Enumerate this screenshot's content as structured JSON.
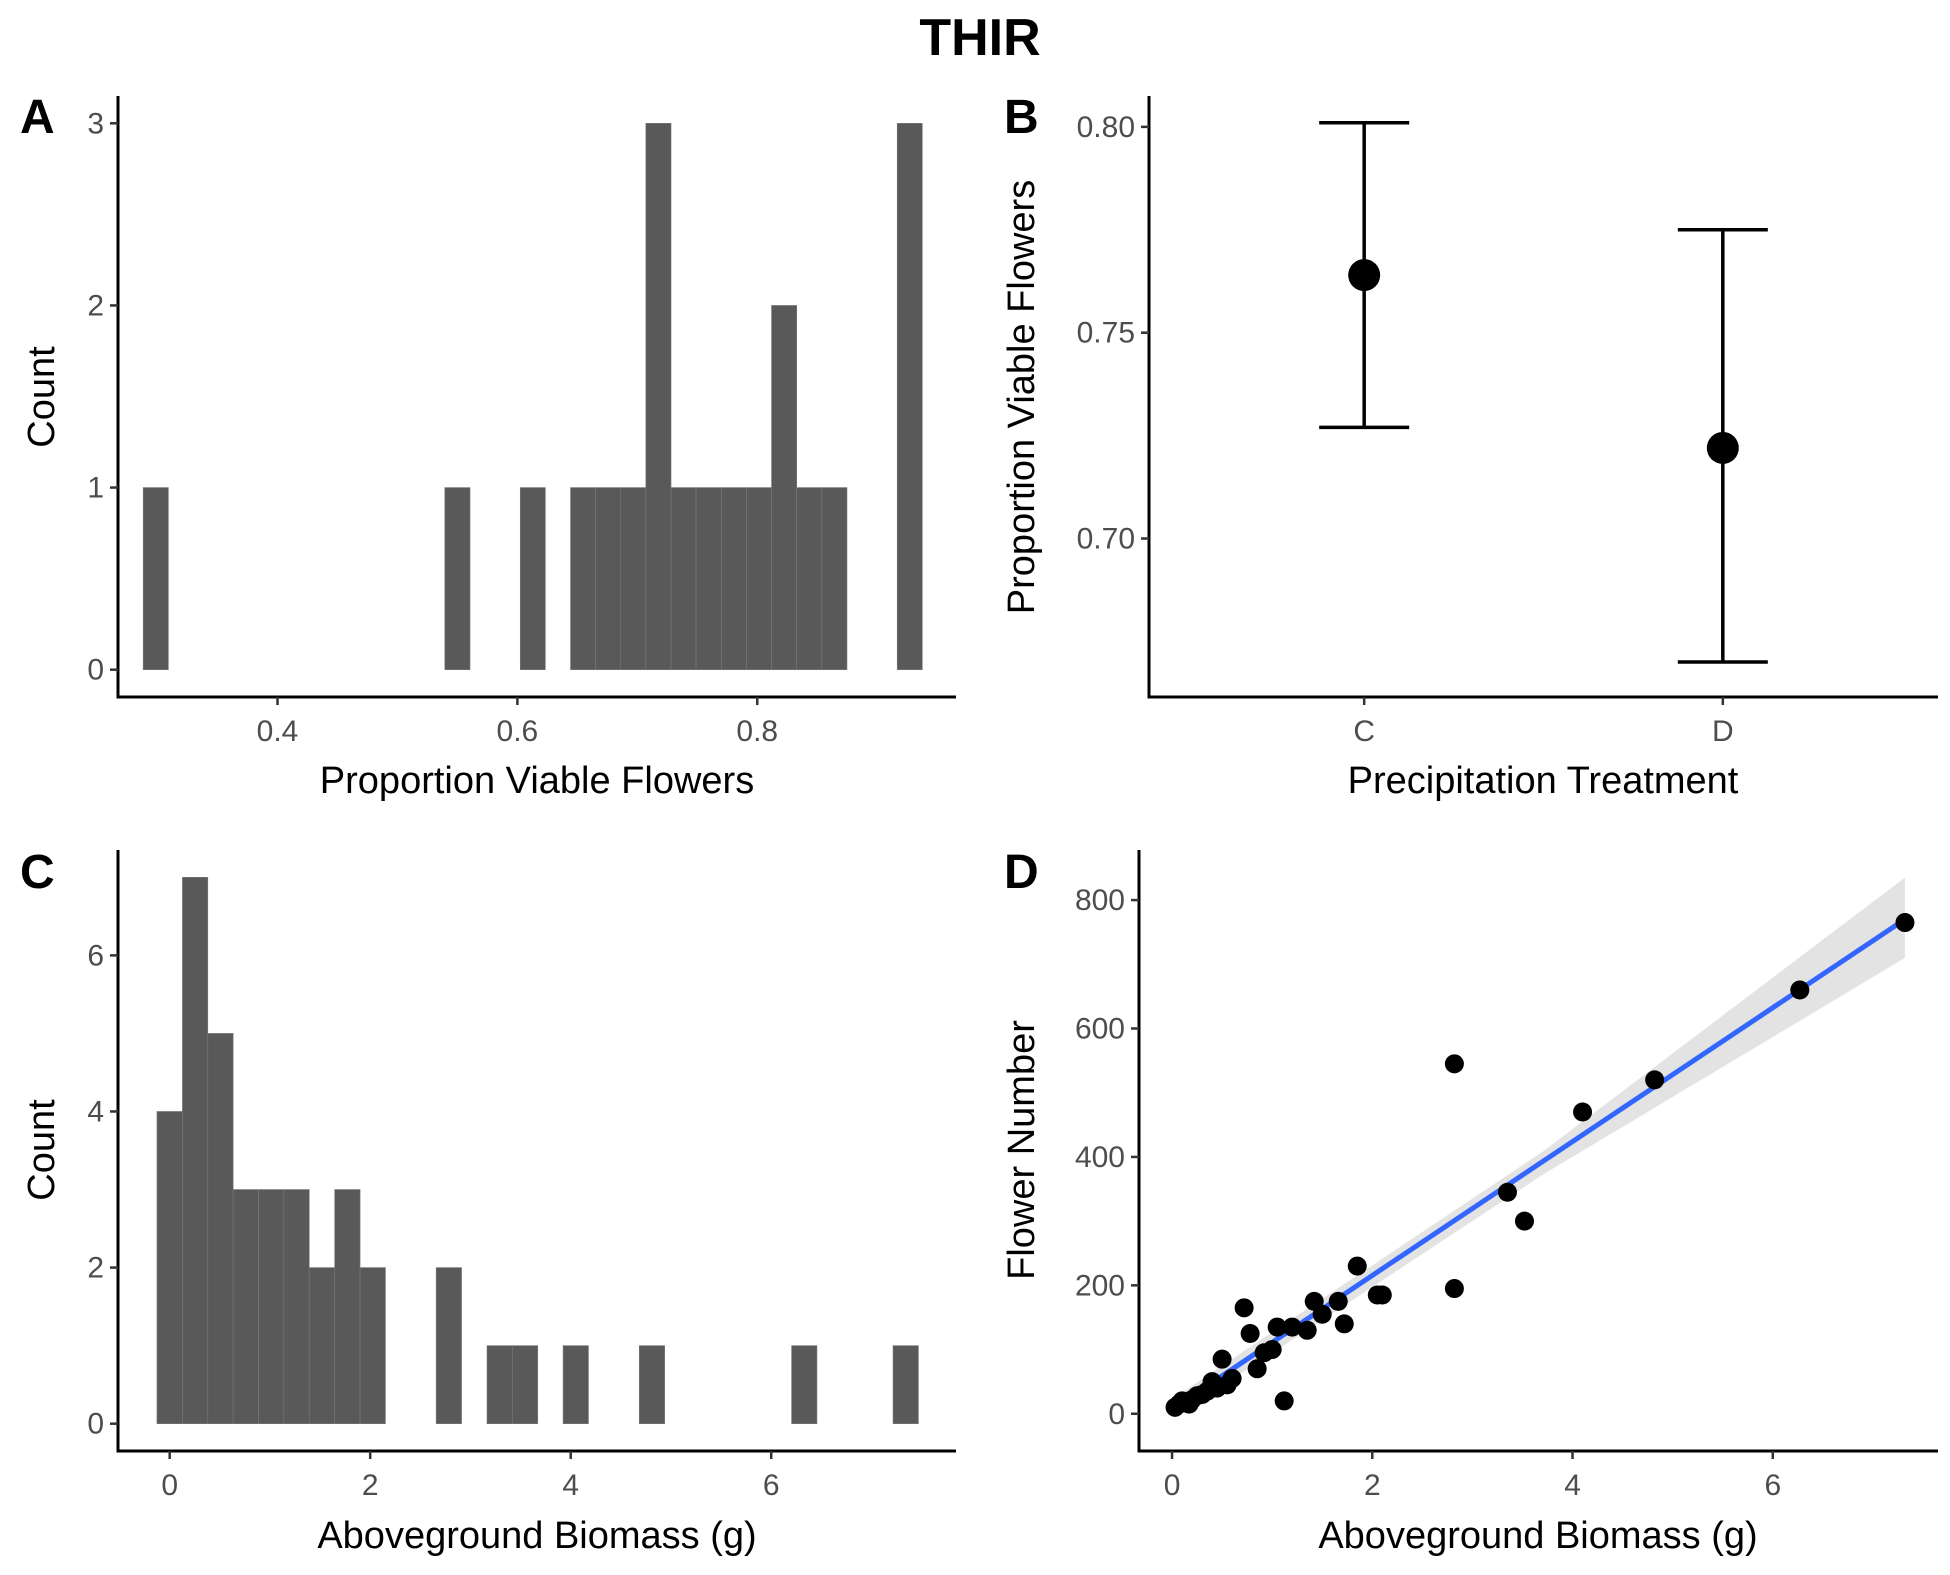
{
  "figure": {
    "title": "THIR"
  },
  "chart_data": [
    {
      "panel": "A",
      "type": "bar",
      "subtype": "histogram",
      "xlabel": "Proportion Viable Flowers",
      "ylabel": "Count",
      "xlim": [
        0.267,
        0.9657
      ],
      "ylim": [
        -0.15,
        3.15
      ],
      "x_ticks": [
        0.4,
        0.6,
        0.8
      ],
      "x_tick_labels": [
        "0.4",
        "0.6",
        "0.8"
      ],
      "y_ticks": [
        0,
        1,
        2,
        3
      ],
      "y_tick_labels": [
        "0",
        "1",
        "2",
        "3"
      ],
      "bar_color": "#595959",
      "bins": [
        {
          "x0": 0.288,
          "x1": 0.309,
          "count": 1
        },
        {
          "x0": 0.5395,
          "x1": 0.5605,
          "count": 1
        },
        {
          "x0": 0.6024,
          "x1": 0.6233,
          "count": 1
        },
        {
          "x0": 0.6443,
          "x1": 0.6652,
          "count": 1
        },
        {
          "x0": 0.6652,
          "x1": 0.6862,
          "count": 1
        },
        {
          "x0": 0.6862,
          "x1": 0.7071,
          "count": 1
        },
        {
          "x0": 0.7071,
          "x1": 0.7281,
          "count": 3
        },
        {
          "x0": 0.7281,
          "x1": 0.749,
          "count": 1
        },
        {
          "x0": 0.749,
          "x1": 0.77,
          "count": 1
        },
        {
          "x0": 0.77,
          "x1": 0.791,
          "count": 1
        },
        {
          "x0": 0.791,
          "x1": 0.8119,
          "count": 1
        },
        {
          "x0": 0.8119,
          "x1": 0.8329,
          "count": 2
        },
        {
          "x0": 0.8329,
          "x1": 0.8538,
          "count": 1
        },
        {
          "x0": 0.8538,
          "x1": 0.8748,
          "count": 1
        },
        {
          "x0": 0.9167,
          "x1": 0.9376,
          "count": 3
        }
      ]
    },
    {
      "panel": "B",
      "type": "scatter",
      "subtype": "point-errorbar",
      "xlabel": "Precipitation Treatment",
      "ylabel": "Proportion Viable Flowers",
      "categories": [
        "C",
        "D"
      ],
      "ylim": [
        0.6615,
        0.8075
      ],
      "y_ticks": [
        0.7,
        0.75,
        0.8
      ],
      "y_tick_labels": [
        "0.70",
        "0.75",
        "0.80"
      ],
      "points": [
        {
          "category": "C",
          "mean": 0.764,
          "lower": 0.727,
          "upper": 0.801
        },
        {
          "category": "D",
          "mean": 0.722,
          "lower": 0.67,
          "upper": 0.775
        }
      ]
    },
    {
      "panel": "C",
      "type": "bar",
      "subtype": "histogram",
      "xlabel": "Aboveground Biomass (g)",
      "ylabel": "Count",
      "xlim": [
        -0.5156,
        7.843
      ],
      "ylim": [
        -0.35,
        7.35
      ],
      "x_ticks": [
        0,
        2,
        4,
        6
      ],
      "x_tick_labels": [
        "0",
        "2",
        "4",
        "6"
      ],
      "y_ticks": [
        0,
        2,
        4,
        6
      ],
      "y_tick_labels": [
        "0",
        "2",
        "4",
        "6"
      ],
      "bar_color": "#595959",
      "bins": [
        {
          "x0": -0.127,
          "x1": 0.127,
          "count": 4
        },
        {
          "x0": 0.127,
          "x1": 0.38,
          "count": 7
        },
        {
          "x0": 0.38,
          "x1": 0.633,
          "count": 5
        },
        {
          "x0": 0.633,
          "x1": 0.886,
          "count": 3
        },
        {
          "x0": 0.886,
          "x1": 1.139,
          "count": 3
        },
        {
          "x0": 1.139,
          "x1": 1.392,
          "count": 3
        },
        {
          "x0": 1.392,
          "x1": 1.646,
          "count": 2
        },
        {
          "x0": 1.646,
          "x1": 1.899,
          "count": 3
        },
        {
          "x0": 1.899,
          "x1": 2.152,
          "count": 2
        },
        {
          "x0": 2.658,
          "x1": 2.911,
          "count": 2
        },
        {
          "x0": 3.165,
          "x1": 3.418,
          "count": 1
        },
        {
          "x0": 3.418,
          "x1": 3.671,
          "count": 1
        },
        {
          "x0": 3.924,
          "x1": 4.177,
          "count": 1
        },
        {
          "x0": 4.684,
          "x1": 4.937,
          "count": 1
        },
        {
          "x0": 6.203,
          "x1": 6.456,
          "count": 1
        },
        {
          "x0": 7.215,
          "x1": 7.468,
          "count": 1
        }
      ]
    },
    {
      "panel": "D",
      "type": "scatter",
      "subtype": "scatter-with-linear-fit",
      "xlabel": "Aboveground Biomass (g)",
      "ylabel": "Flower Number",
      "xlim": [
        -0.33,
        7.65
      ],
      "ylim": [
        -58,
        878
      ],
      "x_ticks": [
        0,
        2,
        4,
        6
      ],
      "x_tick_labels": [
        "0",
        "2",
        "4",
        "6"
      ],
      "y_ticks": [
        0,
        200,
        400,
        600,
        800
      ],
      "y_tick_labels": [
        "0",
        "200",
        "400",
        "600",
        "800"
      ],
      "line_color": "#3366ff",
      "ribbon_color": "#d9d9d9",
      "fit": {
        "x_start": 0.03,
        "y_start": 10,
        "x_end": 7.32,
        "y_end": 770
      },
      "ribbon": [
        {
          "x": 0.03,
          "lower": -5,
          "upper": 26
        },
        {
          "x": 3.7,
          "lower": 372,
          "upper": 408
        },
        {
          "x": 7.32,
          "lower": 710,
          "upper": 835
        }
      ],
      "points": [
        {
          "x": 0.03,
          "y": 10
        },
        {
          "x": 0.07,
          "y": 15
        },
        {
          "x": 0.1,
          "y": 20
        },
        {
          "x": 0.14,
          "y": 18
        },
        {
          "x": 0.17,
          "y": 15
        },
        {
          "x": 0.2,
          "y": 22
        },
        {
          "x": 0.25,
          "y": 28
        },
        {
          "x": 0.3,
          "y": 30
        },
        {
          "x": 0.35,
          "y": 35
        },
        {
          "x": 0.4,
          "y": 50
        },
        {
          "x": 0.45,
          "y": 40
        },
        {
          "x": 0.5,
          "y": 85
        },
        {
          "x": 0.55,
          "y": 45
        },
        {
          "x": 0.6,
          "y": 55
        },
        {
          "x": 0.72,
          "y": 165
        },
        {
          "x": 0.78,
          "y": 125
        },
        {
          "x": 0.85,
          "y": 70
        },
        {
          "x": 0.92,
          "y": 95
        },
        {
          "x": 1.0,
          "y": 100
        },
        {
          "x": 1.05,
          "y": 135
        },
        {
          "x": 1.12,
          "y": 20
        },
        {
          "x": 1.2,
          "y": 135
        },
        {
          "x": 1.35,
          "y": 130
        },
        {
          "x": 1.42,
          "y": 175
        },
        {
          "x": 1.5,
          "y": 155
        },
        {
          "x": 1.66,
          "y": 175
        },
        {
          "x": 1.72,
          "y": 140
        },
        {
          "x": 1.85,
          "y": 230
        },
        {
          "x": 2.05,
          "y": 185
        },
        {
          "x": 2.1,
          "y": 185
        },
        {
          "x": 2.82,
          "y": 195
        },
        {
          "x": 2.82,
          "y": 545
        },
        {
          "x": 3.35,
          "y": 345
        },
        {
          "x": 3.52,
          "y": 300
        },
        {
          "x": 4.1,
          "y": 470
        },
        {
          "x": 4.82,
          "y": 520
        },
        {
          "x": 6.27,
          "y": 660
        },
        {
          "x": 7.32,
          "y": 765
        }
      ]
    }
  ]
}
